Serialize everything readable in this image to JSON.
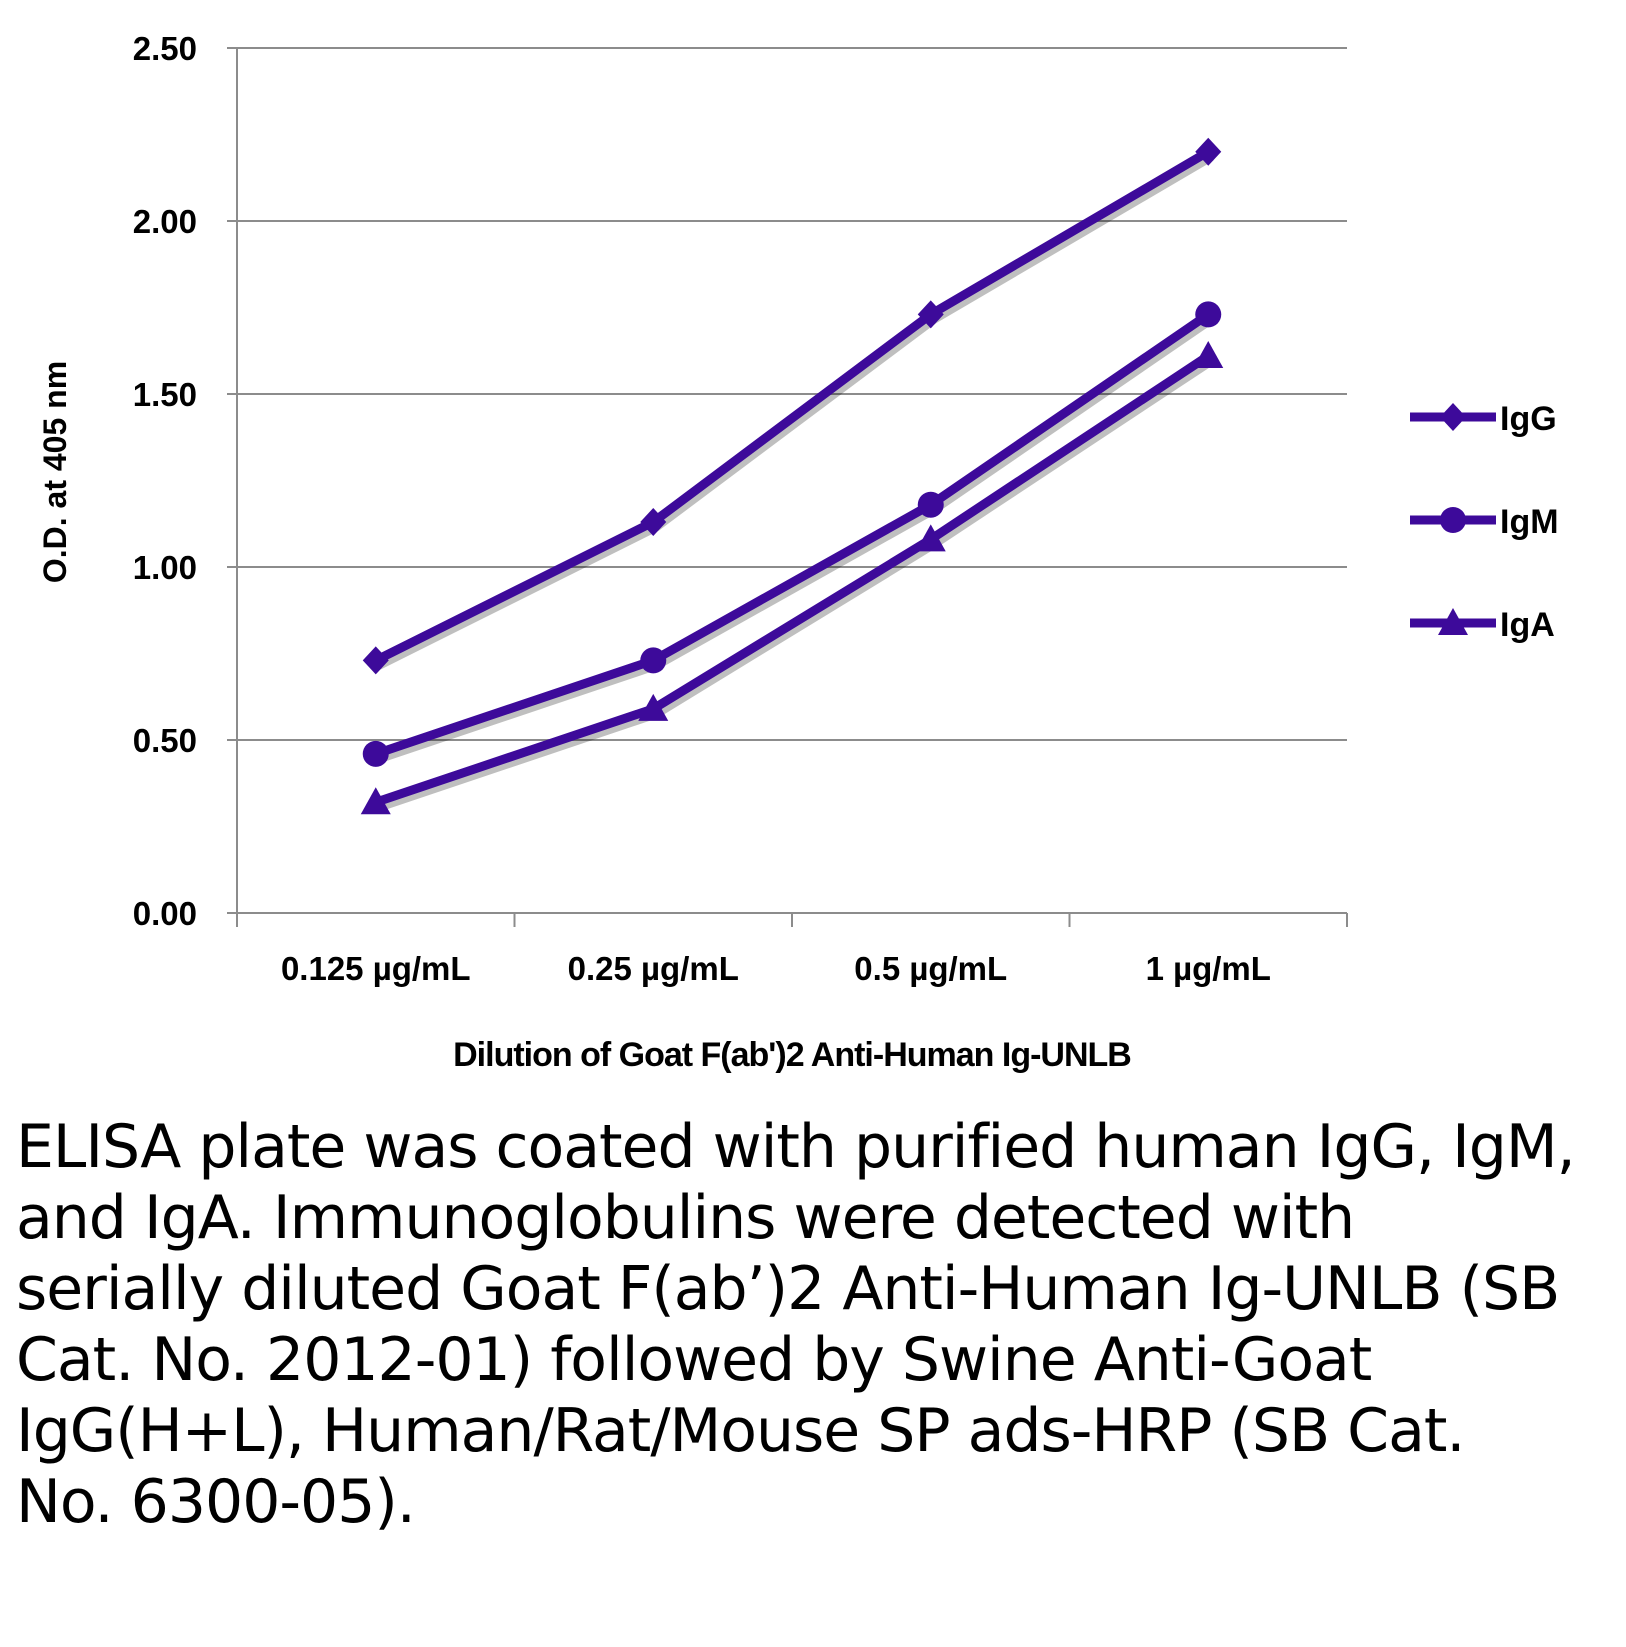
{
  "chart_data": {
    "type": "line",
    "title": "",
    "xlabel": "Dilution of Goat F(ab')2 Anti-Human Ig-UNLB",
    "ylabel": "O.D. at 405 nm",
    "categories": [
      "0.125 µg/mL",
      "0.25 µg/mL",
      "0.5 µg/mL",
      "1 µg/mL"
    ],
    "ylim": [
      0,
      2.5
    ],
    "yticks": [
      "0.00",
      "0.50",
      "1.00",
      "1.50",
      "2.00",
      "2.50"
    ],
    "grid": true,
    "legend_position": "right",
    "color": "#3d0a9a",
    "series": [
      {
        "name": "IgG",
        "marker": "diamond",
        "values": [
          0.73,
          1.13,
          1.73,
          2.2
        ]
      },
      {
        "name": "IgM",
        "marker": "circle",
        "values": [
          0.46,
          0.73,
          1.18,
          1.73
        ]
      },
      {
        "name": "IgA",
        "marker": "triangle",
        "values": [
          0.32,
          0.59,
          1.08,
          1.61
        ]
      }
    ]
  },
  "caption": "ELISA plate was coated with purified human IgG, IgM, and IgA.  Immunoglobulins were detected with serially diluted Goat F(ab’)2 Anti-Human Ig-UNLB (SB Cat. No. 2012-01) followed by Swine Anti-Goat IgG(H+L), Human/Rat/Mouse SP ads-HRP (SB Cat. No. 6300-05)."
}
